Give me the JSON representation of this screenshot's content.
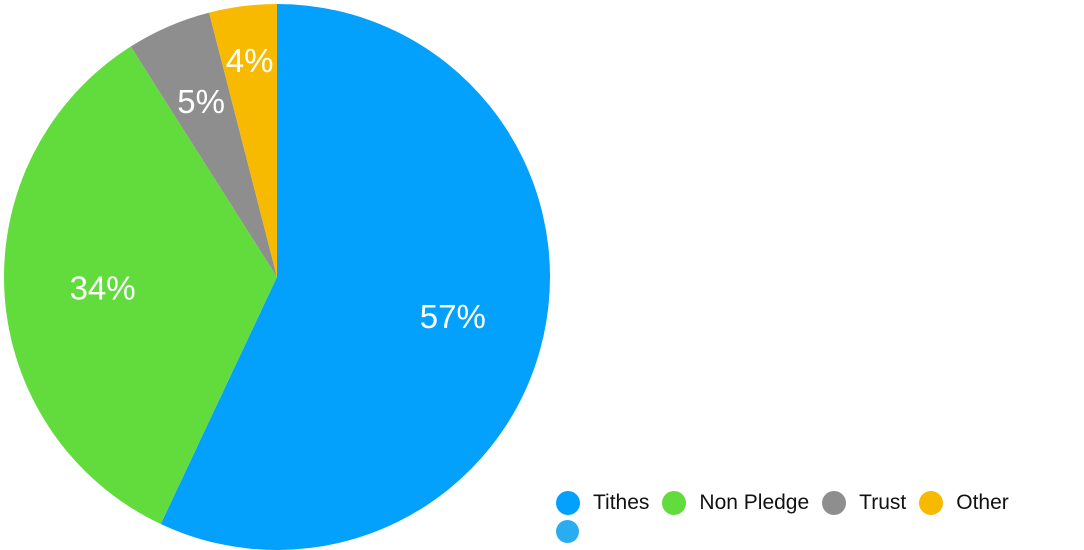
{
  "chart_data": {
    "type": "pie",
    "title": "",
    "categories": [
      "Tithes",
      "Non Pledge",
      "Trust",
      "Other"
    ],
    "values": [
      57,
      34,
      5,
      4
    ],
    "value_labels": [
      "57%",
      "34%",
      "5%",
      "4%"
    ],
    "colors": [
      "#03A1FB",
      "#62DB3C",
      "#8E8E8E",
      "#F8BA00"
    ],
    "start_angle_deg": 0,
    "direction": "clockwise",
    "legend": {
      "placement": "bottom-right",
      "items": [
        {
          "label": "Tithes",
          "color": "#03A1FB"
        },
        {
          "label": "Non Pledge",
          "color": "#62DB3C"
        },
        {
          "label": "Trust",
          "color": "#8E8E8E"
        },
        {
          "label": "Other",
          "color": "#F8BA00"
        }
      ],
      "extra_swatch_color": "#2AACF0"
    }
  }
}
